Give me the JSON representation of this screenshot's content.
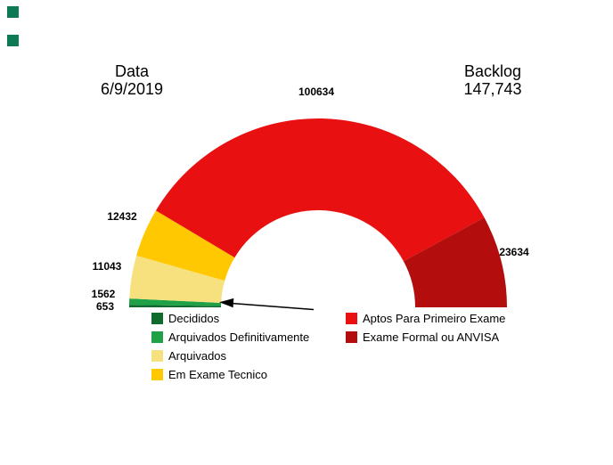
{
  "header": {
    "date_label": "Data",
    "date_value": "6/9/2019",
    "backlog_label": "Backlog",
    "backlog_value": "147,743"
  },
  "chart_data": {
    "type": "pie",
    "subtype": "half-donut-gauge",
    "title": "Backlog 147,743 - Data 6/9/2019",
    "segments": [
      {
        "label": "Decididos",
        "value": 653,
        "color": "#0e6b2d"
      },
      {
        "label": "Arquivados Definitivamente",
        "value": 1562,
        "color": "#1fa148"
      },
      {
        "label": "Arquivados",
        "value": 11043,
        "color": "#f7e07e"
      },
      {
        "label": "Em Exame Tecnico",
        "value": 12432,
        "color": "#ffc800"
      },
      {
        "label": "Aptos Para Primeiro Exame",
        "value": 100634,
        "color": "#e81010"
      },
      {
        "label": "Exame Formal ou ANVISA",
        "value": 23634,
        "color": "#b30d0d"
      }
    ],
    "start_angle_deg": 180,
    "end_angle_deg": 0,
    "legend_position": "bottom",
    "legend_columns": {
      "left": [
        0,
        1,
        2,
        3
      ],
      "right": [
        4,
        5
      ]
    },
    "annotation": "arrow pointing at the small green segments at the left baseline"
  }
}
